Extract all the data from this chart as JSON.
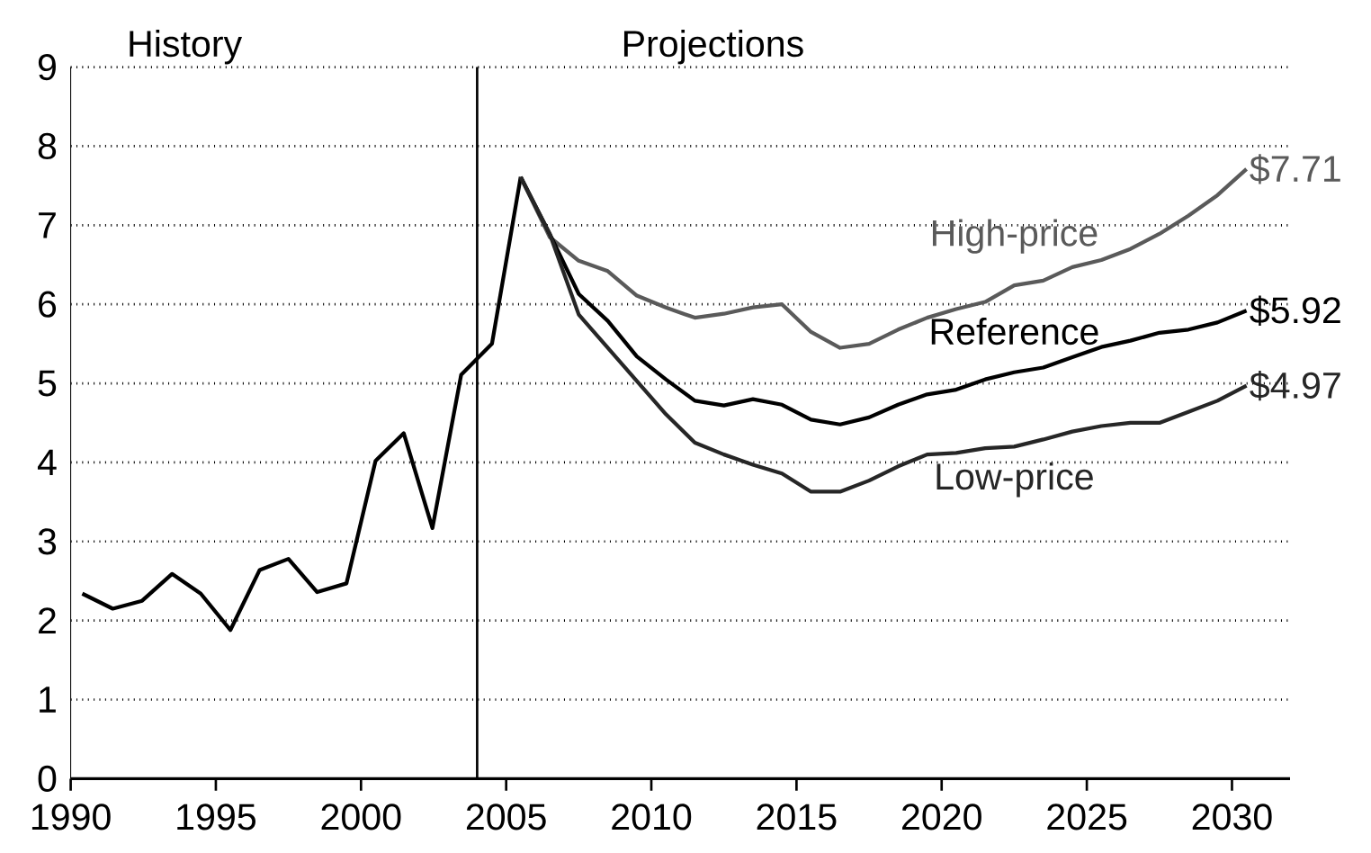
{
  "chart_data": {
    "type": "line",
    "annotations": [
      "History",
      "Projections"
    ],
    "xlim": [
      1990,
      2032
    ],
    "ylim": [
      0,
      9
    ],
    "xticks": [
      1990,
      1995,
      2000,
      2005,
      2010,
      2015,
      2020,
      2025,
      2030
    ],
    "yticks": [
      0,
      1,
      2,
      3,
      4,
      5,
      6,
      7,
      8,
      9
    ],
    "grid": "y",
    "marker": "none",
    "line_style": "solid",
    "ref_lines": [
      {
        "axis": "x",
        "value": 2004,
        "color": "#000000"
      }
    ],
    "series": [
      {
        "color": "#000000",
        "x": [
          1990.4,
          1991.45,
          1992.46,
          1993.49,
          1994.48,
          1995.5,
          1996.51,
          1997.5,
          1998.49,
          1999.5,
          2000.5,
          2001.47,
          2002.46,
          2003.45,
          2004.51,
          2005.5
        ],
        "values": [
          2.34,
          2.15,
          2.25,
          2.59,
          2.34,
          1.88,
          2.64,
          2.78,
          2.36,
          2.47,
          4.02,
          4.37,
          3.17,
          5.11,
          5.5,
          7.61
        ]
      },
      {
        "name": "High-price",
        "color": "#5a5a5a",
        "x": [
          2005.5,
          2006.5,
          2007.5,
          2008.5,
          2009.5,
          2010.5,
          2011.5,
          2012.5,
          2013.5,
          2014.5,
          2015.5,
          2016.5,
          2017.5,
          2018.5,
          2019.5,
          2020.5,
          2021.5,
          2022.5,
          2023.5,
          2024.5,
          2025.5,
          2026.5,
          2027.5,
          2028.5,
          2029.5,
          2030.5
        ],
        "values": [
          7.61,
          6.85,
          6.55,
          6.42,
          6.11,
          5.96,
          5.83,
          5.88,
          5.96,
          6.0,
          5.65,
          5.45,
          5.5,
          5.68,
          5.83,
          5.94,
          6.03,
          6.24,
          6.3,
          6.47,
          6.56,
          6.7,
          6.89,
          7.12,
          7.38,
          7.71
        ],
        "value_labels": [
          null,
          null,
          null,
          null,
          null,
          null,
          null,
          null,
          null,
          null,
          null,
          null,
          null,
          null,
          null,
          null,
          null,
          null,
          null,
          null,
          null,
          null,
          null,
          null,
          null,
          "$7.71"
        ]
      },
      {
        "name": "Reference",
        "color": "#000000",
        "x": [
          2005.5,
          2006.5,
          2007.5,
          2008.5,
          2009.5,
          2010.5,
          2011.5,
          2012.5,
          2013.5,
          2014.5,
          2015.5,
          2016.5,
          2017.5,
          2018.5,
          2019.5,
          2020.5,
          2021.5,
          2022.5,
          2023.5,
          2024.5,
          2025.5,
          2026.5,
          2027.5,
          2028.5,
          2029.5,
          2030.5
        ],
        "values": [
          7.61,
          6.89,
          6.13,
          5.79,
          5.34,
          5.05,
          4.78,
          4.72,
          4.8,
          4.73,
          4.54,
          4.48,
          4.57,
          4.73,
          4.86,
          4.92,
          5.05,
          5.14,
          5.2,
          5.33,
          5.46,
          5.54,
          5.64,
          5.68,
          5.77,
          5.92
        ],
        "value_labels": [
          null,
          null,
          null,
          null,
          null,
          null,
          null,
          null,
          null,
          null,
          null,
          null,
          null,
          null,
          null,
          null,
          null,
          null,
          null,
          null,
          null,
          null,
          null,
          null,
          null,
          "$5.92"
        ]
      },
      {
        "name": "Low-price",
        "color": "#262626",
        "x": [
          2005.5,
          2006.5,
          2007.5,
          2008.5,
          2009.5,
          2010.5,
          2011.5,
          2012.5,
          2013.5,
          2014.5,
          2015.5,
          2016.5,
          2017.5,
          2018.5,
          2019.5,
          2020.5,
          2021.5,
          2022.5,
          2023.5,
          2024.5,
          2025.5,
          2026.5,
          2027.5,
          2028.5,
          2029.5,
          2030.5
        ],
        "values": [
          7.61,
          6.89,
          5.87,
          5.45,
          5.03,
          4.61,
          4.25,
          4.1,
          3.97,
          3.86,
          3.63,
          3.63,
          3.77,
          3.95,
          4.1,
          4.12,
          4.18,
          4.2,
          4.29,
          4.39,
          4.46,
          4.5,
          4.5,
          4.64,
          4.78,
          4.97
        ],
        "value_labels": [
          null,
          null,
          null,
          null,
          null,
          null,
          null,
          null,
          null,
          null,
          null,
          null,
          null,
          null,
          null,
          null,
          null,
          null,
          null,
          null,
          null,
          null,
          null,
          null,
          null,
          "$4.97"
        ]
      }
    ]
  }
}
